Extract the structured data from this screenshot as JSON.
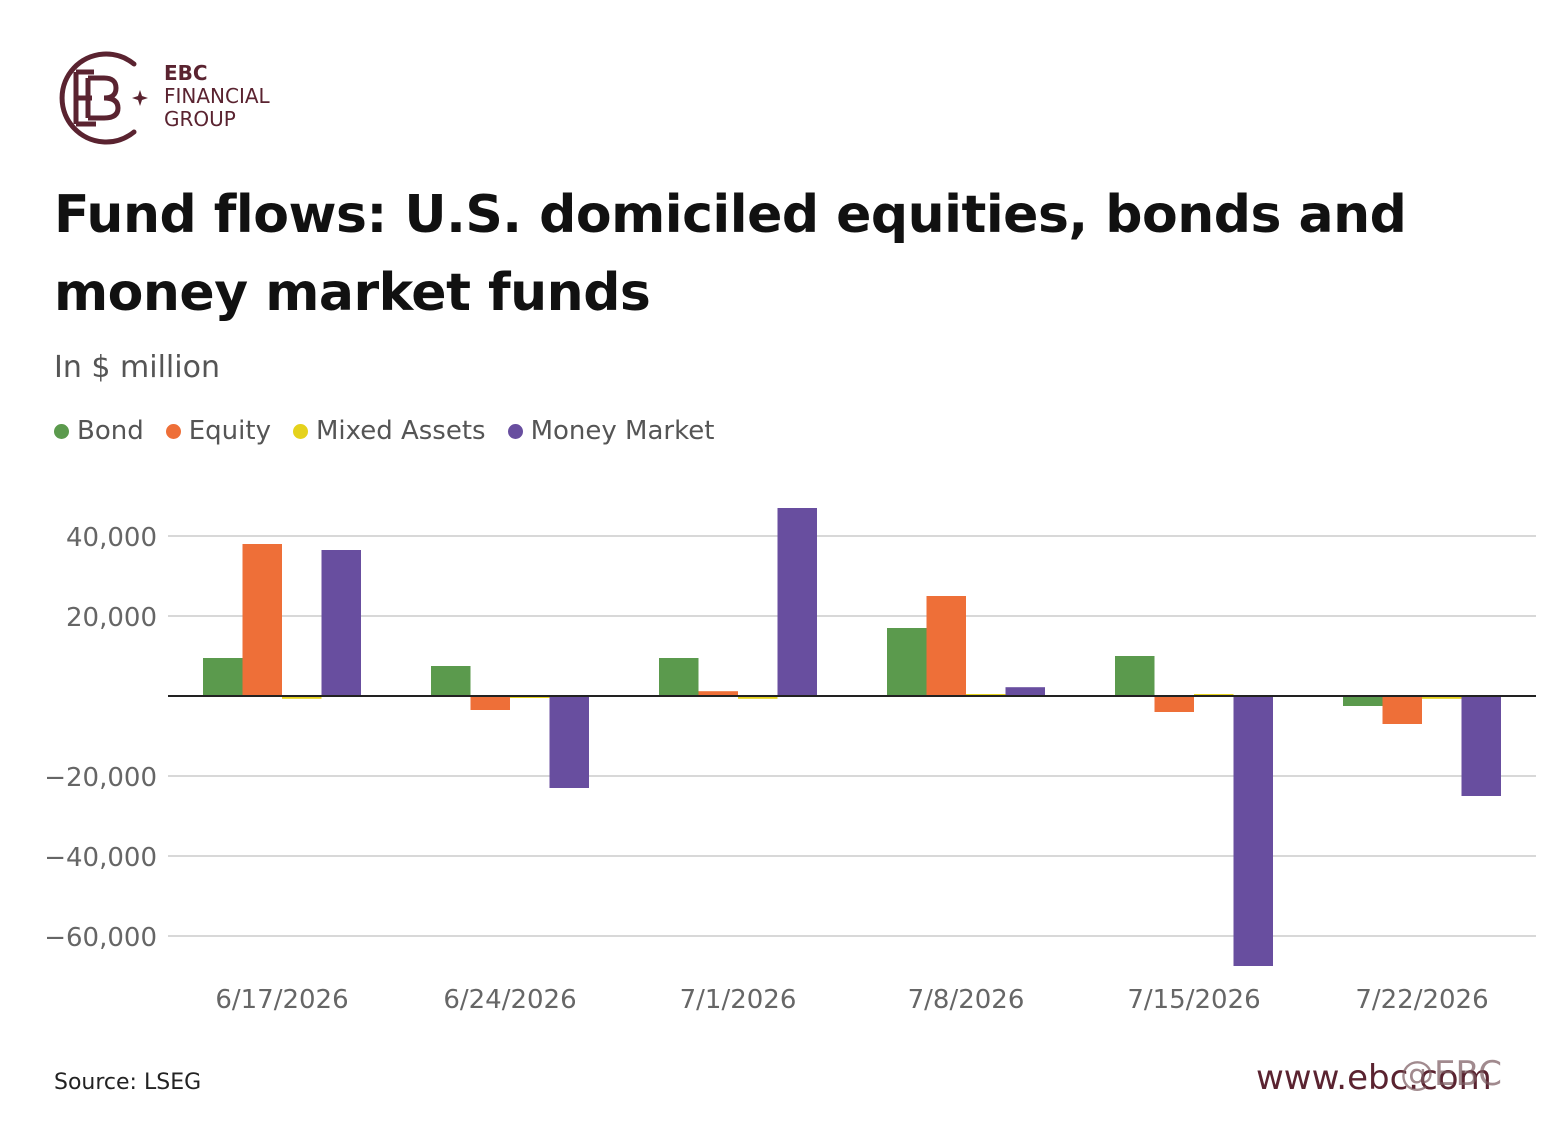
{
  "logo": {
    "line1": "EBC",
    "line2": "FINANCIAL",
    "line3": "GROUP",
    "color": "#5a2330"
  },
  "header": {
    "title": "Fund flows: U.S. domiciled equities, bonds and money market funds",
    "subtitle": "In $ million"
  },
  "footer": {
    "source": "Source: LSEG",
    "website": "www.ebc.com",
    "watermark": "@EBC"
  },
  "chart_data": {
    "type": "bar",
    "categories": [
      "6/17/2026",
      "6/24/2026",
      "7/1/2026",
      "7/8/2026",
      "7/15/2026",
      "7/22/2026"
    ],
    "series": [
      {
        "name": "Bond",
        "color": "#5b9a4d",
        "values": [
          9500,
          7500,
          9500,
          17000,
          10000,
          -2500
        ]
      },
      {
        "name": "Equity",
        "color": "#ee6f38",
        "values": [
          38000,
          -3500,
          1200,
          25000,
          -4000,
          -7000
        ]
      },
      {
        "name": "Mixed Assets",
        "color": "#e5d21c",
        "values": [
          -700,
          -100,
          -700,
          0,
          0,
          -700
        ]
      },
      {
        "name": "Money Market",
        "color": "#684e9f",
        "values": [
          36500,
          -23000,
          47000,
          2200,
          -67500,
          -25000
        ]
      }
    ],
    "yticks": [
      40000,
      20000,
      -20000,
      -40000,
      -60000
    ],
    "ytick_labels": [
      "40,000",
      "20,000",
      "−20,000",
      "−40,000",
      "−60,000"
    ],
    "ylim": [
      -70000,
      50000
    ],
    "grid": true,
    "legend_position": "top-left",
    "xlabel": "",
    "ylabel": ""
  }
}
